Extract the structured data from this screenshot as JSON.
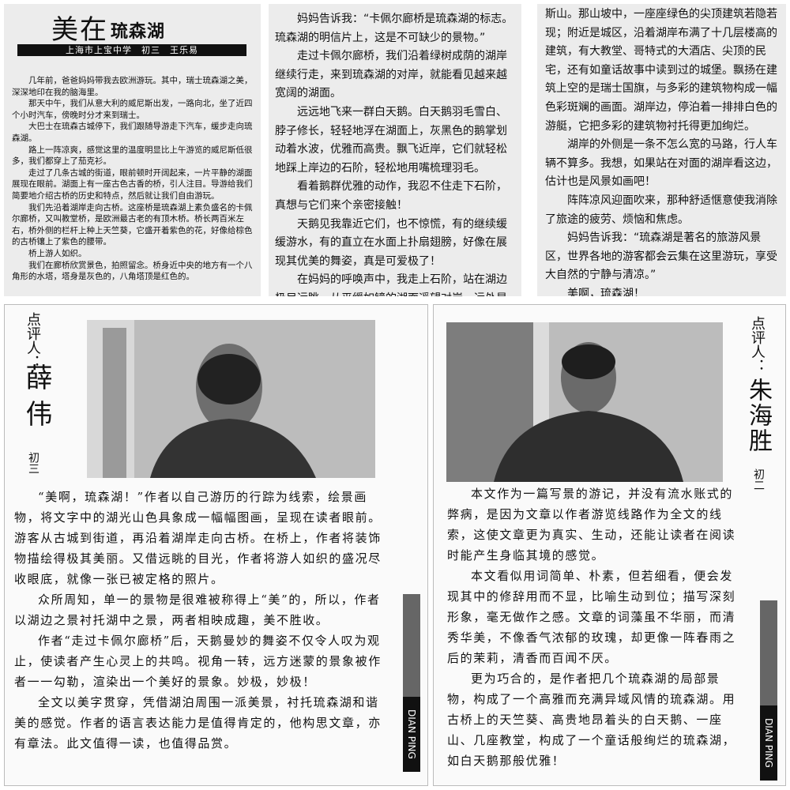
{
  "article": {
    "title_main": "美在",
    "title_sub": "琉森湖",
    "byline": "上海市上宝中学　初三　王乐易",
    "columns": [
      [
        "几年前，爸爸妈妈带我去欧洲游玩。其中，瑞士琉森湖之美，深深地印在我的脑海里。",
        "那天中午，我们从意大利的威尼斯出发，一路向北，坐了近四个小时汽车，傍晚时分才来到瑞士。",
        "大巴士在琉森古城停下，我们跟随导游走下汽车，缓步走向琉森湖。",
        "路上一阵凉爽，感觉这里的温度明显比上午游览的威尼斯低很多，我们都穿上了茄克衫。",
        "走过了几条古城的街道，眼前顿时开阔起来，一片平静的湖面展现在眼前。湖面上有一座古色古香的桥，引人注目。导游给我们简要地介绍古桥的历史和特点，然后就让我们自由游玩。",
        "我们先沿着湖岸走向古桥。这座桥是琉森湖上素负盛名的卡佩尔廊桥，又叫教堂桥，是欧洲最古老的有顶木桥。桥长两百米左右，桥外侧的栏杆上种上天竺葵，它盛开着紫色的花，好像给棕色的古桥镶上了紫色的腰带。",
        "桥上游人如织。",
        "我们在廊桥欣赏景色，拍照留念。桥身近中央的地方有一个八角形的水塔，塔身是灰色的，八角塔顶是红色的。"
      ],
      [
        "妈妈告诉我：“卡佩尔廊桥是琉森湖的标志。琉森湖的明信片上，这是不可缺少的景物。”",
        "走过卡佩尔廊桥，我们沿着绿树成荫的湖岸继续行走，来到琉森湖的对岸，就能看见越来越宽阔的湖面。",
        "远远地飞来一群白天鹅。白天鹅羽毛雪白、脖子修长，轻轻地浮在湖面上，灰黑色的鹅掌划动着水波，优雅而高贵。飘飞近岸，它们就轻松地踩上岸边的石阶，轻松地用嘴梳理羽毛。",
        "看着鹅群优雅的动作，我忍不住走下石阶，真想与它们来个亲密接触！",
        "天鹅见我靠近它们，也不惊慌，有的继续缓缓游水，有的直立在水面上扑扇翅膀，好像在展现其优美的舞姿，真是可爱极了！",
        "在妈妈的呼唤声中，我走上石阶，站在湖边极目远眺。从平缓如镜的湖面遥望对岸，远处是巍峨的阿尔卑"
      ],
      [
        "斯山。那山坡中，一座座绿色的尖顶建筑若隐若现；附近是城区，沿着湖岸布满了十几层楼高的建筑，有大教堂、哥特式的大酒店、尖顶的民宅，还有如童话故事中读到过的城堡。飘扬在建筑上空的是瑞士国旗，与多彩的建筑物构成一幅色彩斑斓的画面。湖岸边，停泊着一排排白色的游艇，它把多彩的建筑物衬托得更加绚烂。",
        "湖岸的外侧是一条不怎么宽的马路，行人车辆不算多。我想，如果站在对面的湖岸看这边，估计也是风景如画吧！",
        "阵阵凉风迎面吹来，那种舒适惬意使我消除了旅途的疲劳、烦恼和焦虑。",
        "妈妈告诉我：“琉森湖是著名的旅游风景区，世界各地的游客都会云集在这里游玩，享受大自然的宁静与清凉。”",
        "美啊，琉森湖！"
      ]
    ]
  },
  "reviews": [
    {
      "label": "点评人：",
      "name": "薛伟",
      "grade": "初三",
      "tab": "DIAN PING",
      "paragraphs": [
        "“美啊，琉森湖！”作者以自己游历的行踪为线索，绘景画物，将文字中的湖光山色具象成一幅幅图画，呈现在读者眼前。游客从古城到街道，再沿着湖岸走向古桥。在桥上，作者将装饰物描绘得极其美丽。又借远眺的目光，作者将游人如织的盛况尽收眼底，就像一张已被定格的照片。",
        "众所周知，单一的景物是很难被称得上“美”的，所以，作者以湖边之景衬托湖中之景，两者相映成趣，美不胜收。",
        "作者“走过卡佩尔廊桥”后，天鹅曼妙的舞姿不仅令人叹为观止，使读者产生心灵上的共鸣。视角一转，远方迷蒙的景象被作者一一勾勒，渲染出一个美好的景象。妙极，妙极！",
        "全文以美字贯穿，凭借湖泊周围一派美景，衬托琉森湖和谐美的感觉。作者的语言表达能力是值得肯定的，他构思文章，亦有章法。此文值得一读，也值得品赏。"
      ]
    },
    {
      "label": "点评人：",
      "name": "朱海胜",
      "grade": "初二",
      "tab": "DIAN PING",
      "paragraphs": [
        "本文作为一篇写景的游记，并没有流水账式的弊病，是因为文章以作者游览线路作为全文的线索，这使文章更为真实、生动，还能让读者在阅读时能产生身临其境的感觉。",
        "本文看似用词简单、朴素，但若细看，便会发现其中的修辞用而不显，比喻生动到位；描写深刻形象，毫无做作之感。文章的词藻虽不华丽，而清秀华美，不像香气浓郁的玫瑰，却更像一阵春雨之后的茉莉，清香而百闻不厌。",
        "更为巧合的，是作者把几个琉森湖的局部景物，构成了一个高雅而充满异域风情的琉森湖。用古桥上的天竺葵、高贵地昂着头的白天鹅、一座山、几座教堂，构成了一个童话般绚烂的琉森湖，如白天鹅那般优雅！"
      ]
    }
  ]
}
